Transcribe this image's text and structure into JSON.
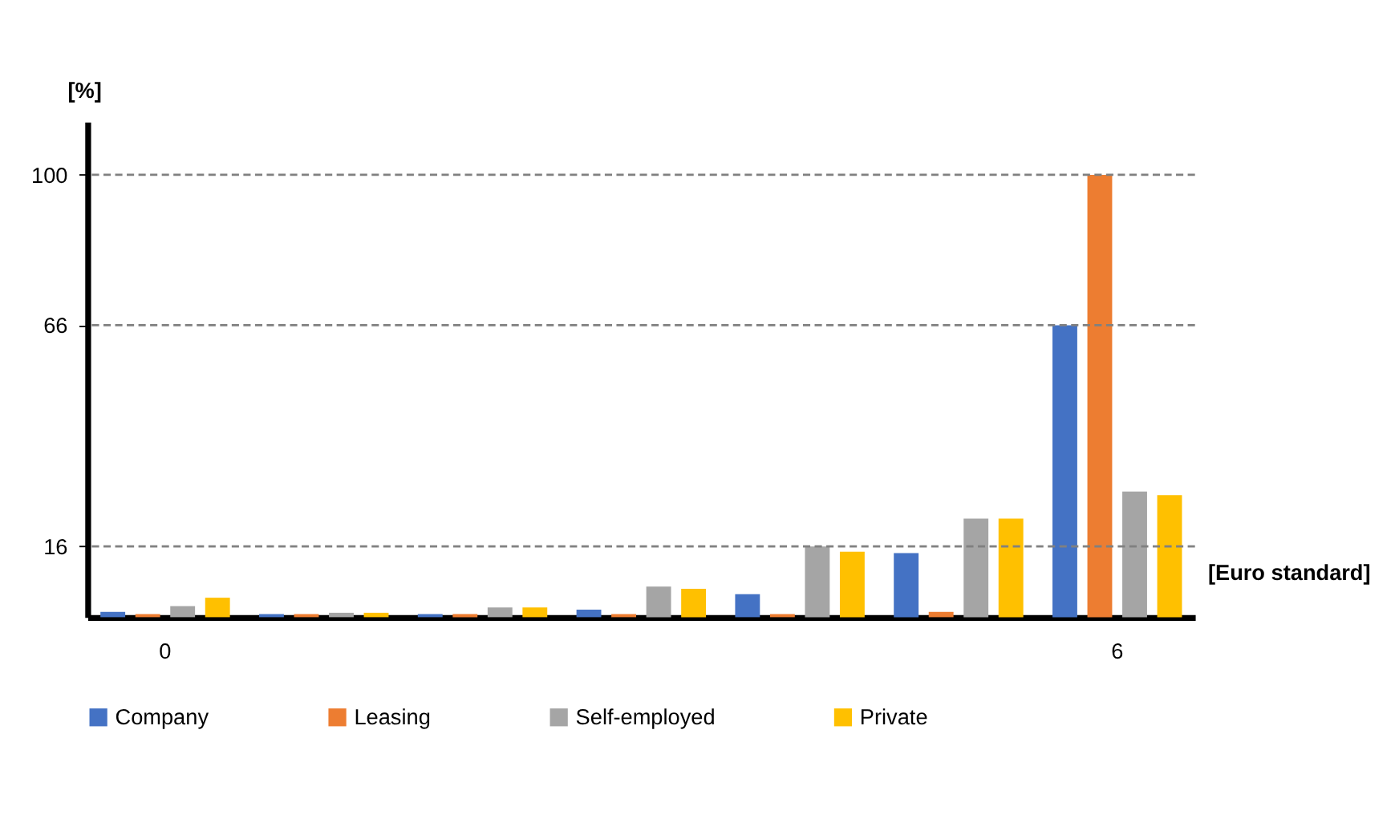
{
  "chart_data": {
    "type": "bar",
    "categories": [
      "0",
      null,
      null,
      null,
      null,
      null,
      "6"
    ],
    "xlabel": "[Euro standard]",
    "ylabel": "[%]",
    "ylim": [
      0,
      112
    ],
    "yticks": [
      16,
      66,
      100
    ],
    "series": [
      {
        "name": "Company",
        "color": "#4472c4",
        "values": [
          1.2,
          0.7,
          0.7,
          1.7,
          5.2,
          14.5,
          66
        ]
      },
      {
        "name": "Leasing",
        "color": "#ed7d31",
        "values": [
          0.7,
          0.7,
          0.7,
          0.7,
          0.7,
          1.2,
          100
        ]
      },
      {
        "name": "Self-employed",
        "color": "#a5a5a5",
        "values": [
          2.5,
          1.0,
          2.2,
          6.9,
          16,
          22.3,
          28.4
        ]
      },
      {
        "name": "Private",
        "color": "#ffc000",
        "values": [
          4.4,
          1.0,
          2.2,
          6.4,
          14.8,
          22.3,
          27.6
        ]
      }
    ],
    "ref_lines": [
      {
        "axis": "y",
        "value": 16,
        "color": "#808080",
        "line_style": "dashed"
      },
      {
        "axis": "y",
        "value": 66,
        "color": "#808080",
        "line_style": "dashed"
      },
      {
        "axis": "y",
        "value": 100,
        "color": "#808080",
        "line_style": "dashed"
      }
    ],
    "grid": false,
    "legend": "bottom"
  }
}
